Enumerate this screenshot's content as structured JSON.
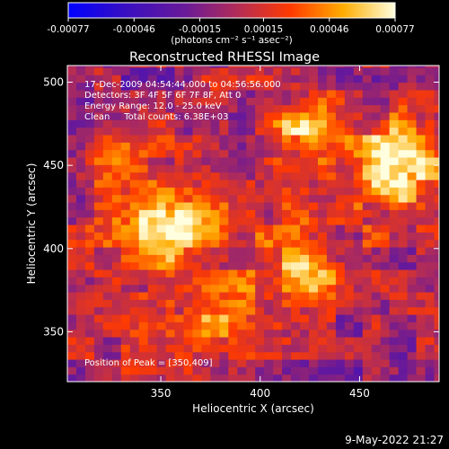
{
  "chart_data": {
    "type": "heatmap",
    "title": "Reconstructed RHESSI Image",
    "xlabel": "Heliocentric X (arcsec)",
    "ylabel": "Heliocentric Y (arcsec)",
    "xlim": [
      303,
      490
    ],
    "ylim": [
      320,
      510
    ],
    "x_ticks": [
      "350",
      "400",
      "450"
    ],
    "y_ticks": [
      "350",
      "400",
      "450",
      "500"
    ],
    "annotations": {
      "line1": "17-Dec-2009 04:54:44.000 to 04:56:56.000",
      "line2": "Detectors: 3F 4F 5F 6F 7F 8F, Att 0",
      "line3": "Energy Range: 12.0 - 25.0 keV",
      "line4": "Clean     Total counts: 6.38E+03",
      "peak": "Position of Peak = [350,409]"
    },
    "colorbar": {
      "min": -0.00077,
      "max": 0.00077,
      "tick_labels": [
        "-0.00077",
        "-0.00046",
        "-0.00015",
        "0.00015",
        "0.00046",
        "0.00077"
      ],
      "units": "(photons cm⁻² s⁻¹ asec⁻²)"
    },
    "peak_position": [
      350,
      409
    ],
    "hotspots": [
      {
        "x": 350,
        "y": 409,
        "v": 0.00077
      },
      {
        "x": 420,
        "y": 470,
        "v": 0.00052
      },
      {
        "x": 467,
        "y": 453,
        "v": 0.0005
      },
      {
        "x": 325,
        "y": 452,
        "v": 0.00042
      },
      {
        "x": 420,
        "y": 381,
        "v": 0.00045
      },
      {
        "x": 375,
        "y": 360,
        "v": 0.0004
      },
      {
        "x": 468,
        "y": 440,
        "v": 0.00035
      }
    ]
  },
  "footer": {
    "timestamp": "9-May-2022 21:27"
  }
}
